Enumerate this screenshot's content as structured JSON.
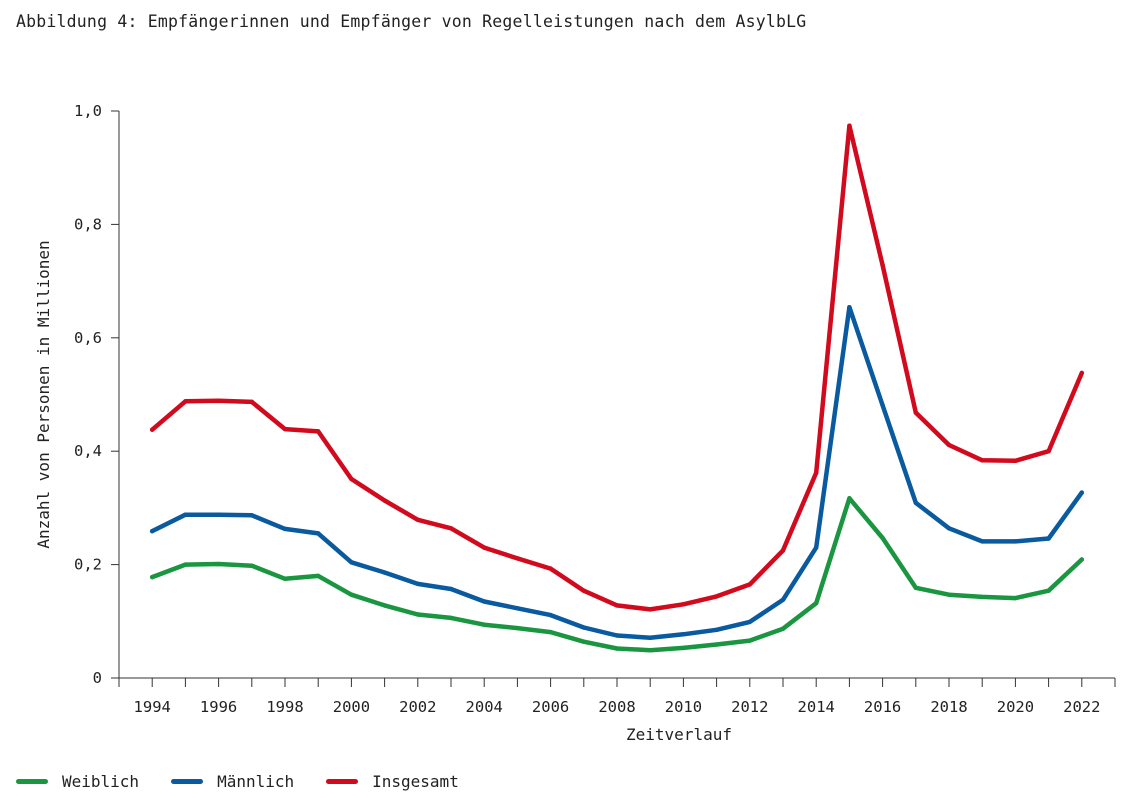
{
  "title": "Abbildung 4: Empfängerinnen und Empfänger von Regelleistungen nach dem AsylbLG",
  "chart_data": {
    "type": "line",
    "xlabel": "Zeitverlauf",
    "ylabel": "Anzahl von Personen in Millionen",
    "ylim": [
      0,
      1.0
    ],
    "yticks": [
      0,
      0.2,
      0.4,
      0.6,
      0.8,
      1.0
    ],
    "ytick_labels": [
      "0",
      "0,2",
      "0,4",
      "0,6",
      "0,8",
      "1,0"
    ],
    "xlim": [
      1993,
      2023
    ],
    "xtick_labels": [
      "1994",
      "1996",
      "1998",
      "2000",
      "2002",
      "2004",
      "2006",
      "2008",
      "2010",
      "2012",
      "2014",
      "2016",
      "2018",
      "2020",
      "2022"
    ],
    "grid": false,
    "legend_position": "bottom-left",
    "x": [
      1994,
      1995,
      1996,
      1997,
      1998,
      1999,
      2000,
      2001,
      2002,
      2003,
      2004,
      2005,
      2006,
      2007,
      2008,
      2009,
      2010,
      2011,
      2012,
      2013,
      2014,
      2015,
      2016,
      2017,
      2018,
      2019,
      2020,
      2021,
      2022
    ],
    "series": [
      {
        "name": "Weiblich",
        "color": "#1a9641",
        "values": [
          0.178,
          0.2,
          0.201,
          0.198,
          0.175,
          0.18,
          0.147,
          0.128,
          0.112,
          0.106,
          0.094,
          0.088,
          0.081,
          0.064,
          0.052,
          0.049,
          0.053,
          0.059,
          0.066,
          0.087,
          0.132,
          0.317,
          0.247,
          0.159,
          0.147,
          0.143,
          0.141,
          0.154,
          0.209
        ]
      },
      {
        "name": "Männlich",
        "color": "#0a5aa0",
        "values": [
          0.259,
          0.288,
          0.288,
          0.287,
          0.263,
          0.255,
          0.204,
          0.186,
          0.166,
          0.157,
          0.135,
          0.123,
          0.111,
          0.089,
          0.075,
          0.071,
          0.077,
          0.085,
          0.099,
          0.138,
          0.23,
          0.654,
          0.481,
          0.309,
          0.264,
          0.241,
          0.241,
          0.246,
          0.327
        ]
      },
      {
        "name": "Insgesamt",
        "color": "#d10a1e",
        "values": [
          0.438,
          0.488,
          0.489,
          0.487,
          0.439,
          0.435,
          0.351,
          0.313,
          0.279,
          0.264,
          0.23,
          0.211,
          0.193,
          0.154,
          0.128,
          0.121,
          0.13,
          0.144,
          0.165,
          0.225,
          0.362,
          0.974,
          0.728,
          0.468,
          0.411,
          0.384,
          0.383,
          0.4,
          0.538
        ]
      }
    ]
  }
}
